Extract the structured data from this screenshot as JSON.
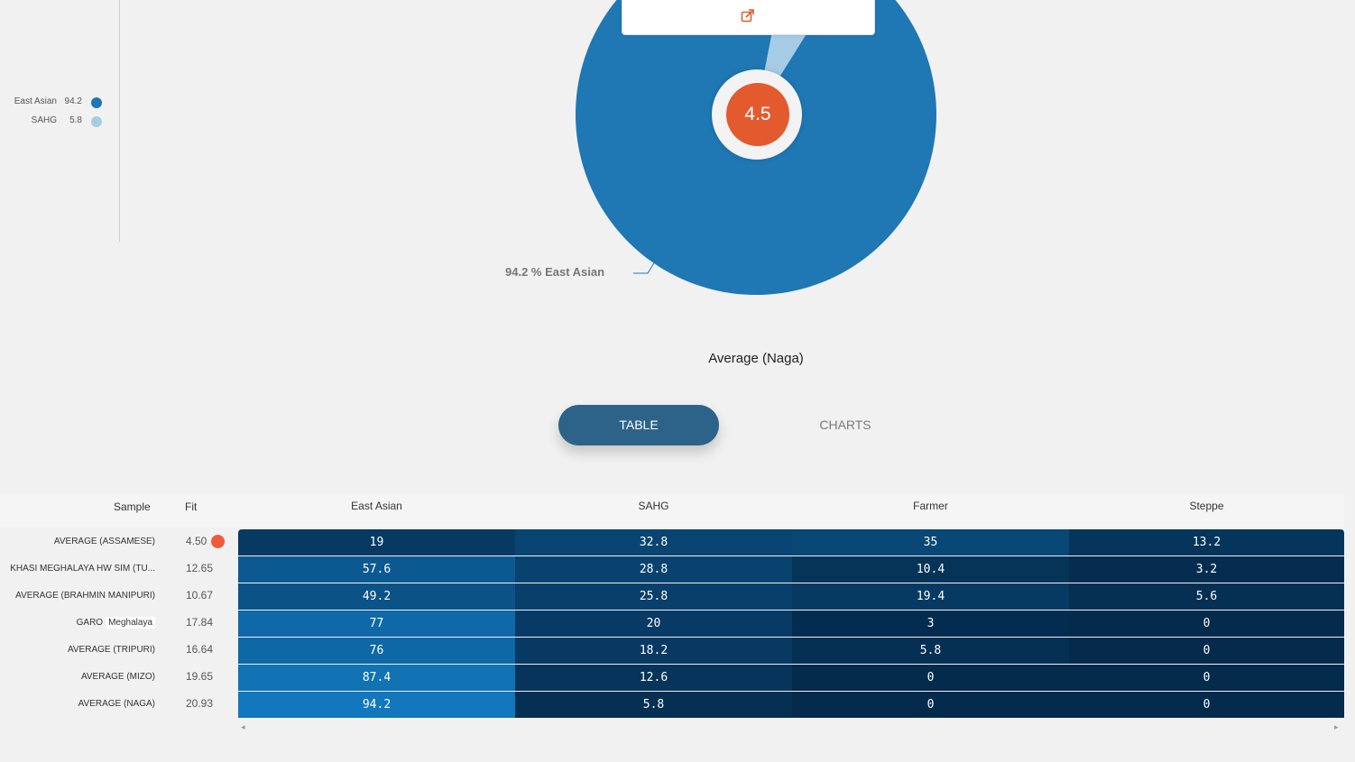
{
  "chart_data": {
    "type": "pie",
    "title": "Average (Naga)",
    "slices": [
      {
        "label": "East Asian",
        "value": 94.2,
        "color": "#1f77b4"
      },
      {
        "label": "SAHG",
        "value": 5.8,
        "color": "#a6cce5"
      }
    ],
    "slice_label_text": "94.2 %  East Asian",
    "center_value": "4.5"
  },
  "legend": [
    {
      "name": "East Asian",
      "value": "94.2",
      "color": "#1f77b4"
    },
    {
      "name": "SAHG",
      "value": "5.8",
      "color": "#a6cce5"
    }
  ],
  "popup": {
    "share_icon": "share-icon"
  },
  "tabs": {
    "table": "TABLE",
    "charts": "CHARTS"
  },
  "table": {
    "headers": {
      "sample": "Sample",
      "fit": "Fit",
      "cols": [
        "East Asian",
        "SAHG",
        "Farmer",
        "Steppe"
      ]
    },
    "rows": [
      {
        "sample": "AVERAGE (ASSAMESE)",
        "fit": "4.50",
        "values": [
          "19",
          "32.8",
          "35",
          "13.2"
        ]
      },
      {
        "sample": "KHASI MEGHALAYA HW SIM (TU...",
        "fit": "12.65",
        "values": [
          "57.6",
          "28.8",
          "10.4",
          "3.2"
        ]
      },
      {
        "sample": "AVERAGE (BRAHMIN MANIPURI)",
        "fit": "10.67",
        "values": [
          "49.2",
          "25.8",
          "19.4",
          "5.6"
        ]
      },
      {
        "sample": "GARO",
        "sample_highlight": "Meghalaya",
        "fit": "17.84",
        "values": [
          "77",
          "20",
          "3",
          "0"
        ]
      },
      {
        "sample": "AVERAGE (TRIPURI)",
        "fit": "16.64",
        "values": [
          "76",
          "18.2",
          "5.8",
          "0"
        ]
      },
      {
        "sample": "AVERAGE (MIZO)",
        "fit": "19.65",
        "values": [
          "87.4",
          "12.6",
          "0",
          "0"
        ]
      },
      {
        "sample": "AVERAGE (NAGA)",
        "fit": "20.93",
        "values": [
          "94.2",
          "5.8",
          "0",
          "0"
        ]
      }
    ],
    "best_fit_marker_color": "#ef5a3a",
    "scroll_left": "◂",
    "scroll_right": "▸"
  }
}
